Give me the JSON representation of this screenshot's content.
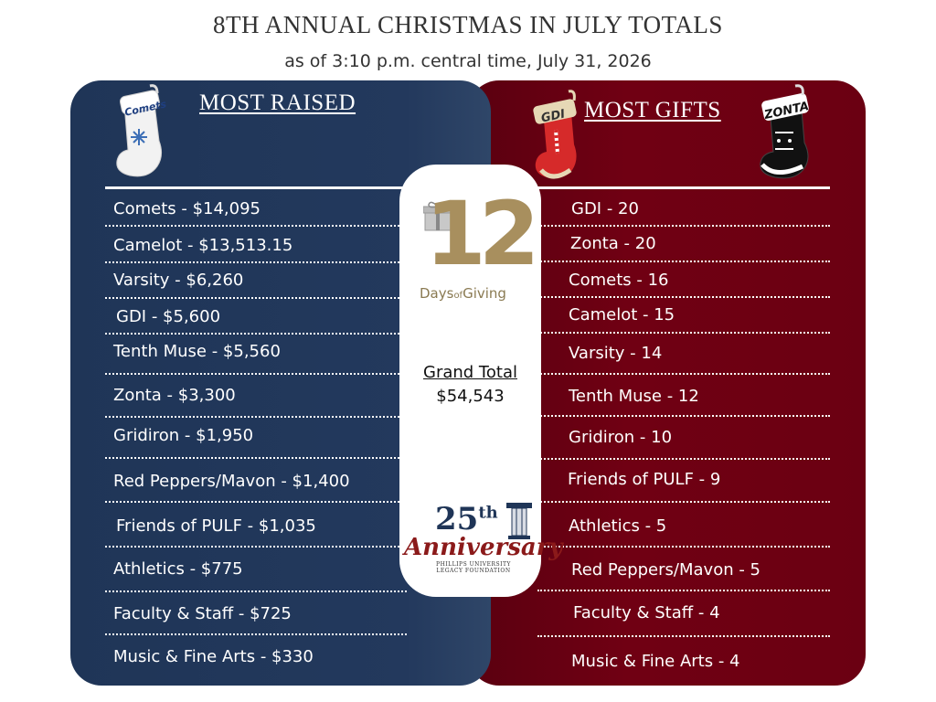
{
  "header": {
    "title": "8TH ANNUAL CHRISTMAS IN JULY TOTALS",
    "subtitle": "as of 3:10 p.m. central time, July 31, 2026"
  },
  "most_raised": {
    "heading": "MOST RAISED",
    "stocking_label": "Comets",
    "rows": [
      "Comets -  $14,095",
      "Camelot - $13,513.15",
      "Varsity - $6,260",
      "GDI - $5,600",
      "Tenth Muse - $5,560",
      "Zonta - $3,300",
      "Gridiron - $1,950",
      "Red Peppers/Mavon - $1,400",
      "Friends of PULF - $1,035",
      "Athletics - $775",
      "Faculty & Staff - $725",
      "Music & Fine Arts  - $330"
    ]
  },
  "most_gifts": {
    "heading": "MOST GIFTS",
    "stocking_left_label": "GDI",
    "stocking_right_label": "ZONTA",
    "rows": [
      "GDI - 20",
      "Zonta - 20",
      "Comets - 16",
      "Camelot  - 15",
      "Varsity - 14",
      "Tenth Muse - 12",
      "Gridiron - 10",
      "Friends of PULF - 9",
      "Athletics - 5",
      "Red Peppers/Mavon - 5",
      "Faculty & Staff - 4",
      "Music & Fine Arts - 4"
    ]
  },
  "center": {
    "grand_total_label": "Grand Total",
    "grand_total_value": "$54,543",
    "logo12": {
      "number": "12",
      "days": "Days",
      "of": "of",
      "giving": "Giving"
    },
    "logo25": {
      "number": "25",
      "suffix": "th",
      "word": "Anniversary",
      "foot_line1": "PHILLIPS UNIVERSITY",
      "foot_line2": "LEGACY FOUNDATION"
    }
  },
  "colors": {
    "navy": "#23395d",
    "maroon": "#700013",
    "gold": "#a88f5e"
  }
}
